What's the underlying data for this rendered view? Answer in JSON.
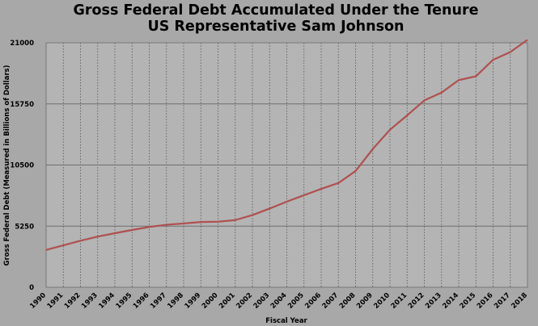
{
  "chart_data": {
    "type": "line",
    "title_line1": "Gross Federal Debt Accumulated Under the Tenure",
    "title_line2": "US Representative Sam Johnson",
    "xlabel": "Fiscal Year",
    "ylabel": "Gross Federal Debt (Measured in Billions of Dollars)",
    "ylim": [
      0,
      21000
    ],
    "y_ticks": [
      "0",
      "5250",
      "10500",
      "15750",
      "21000"
    ],
    "y_tick_values": [
      0,
      5250,
      10500,
      15750,
      21000
    ],
    "grid": true,
    "categories": [
      "1990",
      "1991",
      "1992",
      "1993",
      "1994",
      "1995",
      "1996",
      "1997",
      "1998",
      "1999",
      "2000",
      "2001",
      "2002",
      "2003",
      "2004",
      "2005",
      "2006",
      "2007",
      "2008",
      "2009",
      "2010",
      "2011",
      "2012",
      "2013",
      "2014",
      "2015",
      "2016",
      "2017",
      "2018"
    ],
    "series": [
      {
        "values": [
          3206,
          3598,
          4001,
          4351,
          4643,
          4921,
          5181,
          5369,
          5478,
          5606,
          5629,
          5770,
          6198,
          6760,
          7354,
          7905,
          8451,
          8951,
          9986,
          11876,
          13529,
          14764,
          16051,
          16719,
          17794,
          18120,
          19539,
          20206,
          21250
        ],
        "color": "#b05050"
      }
    ]
  }
}
